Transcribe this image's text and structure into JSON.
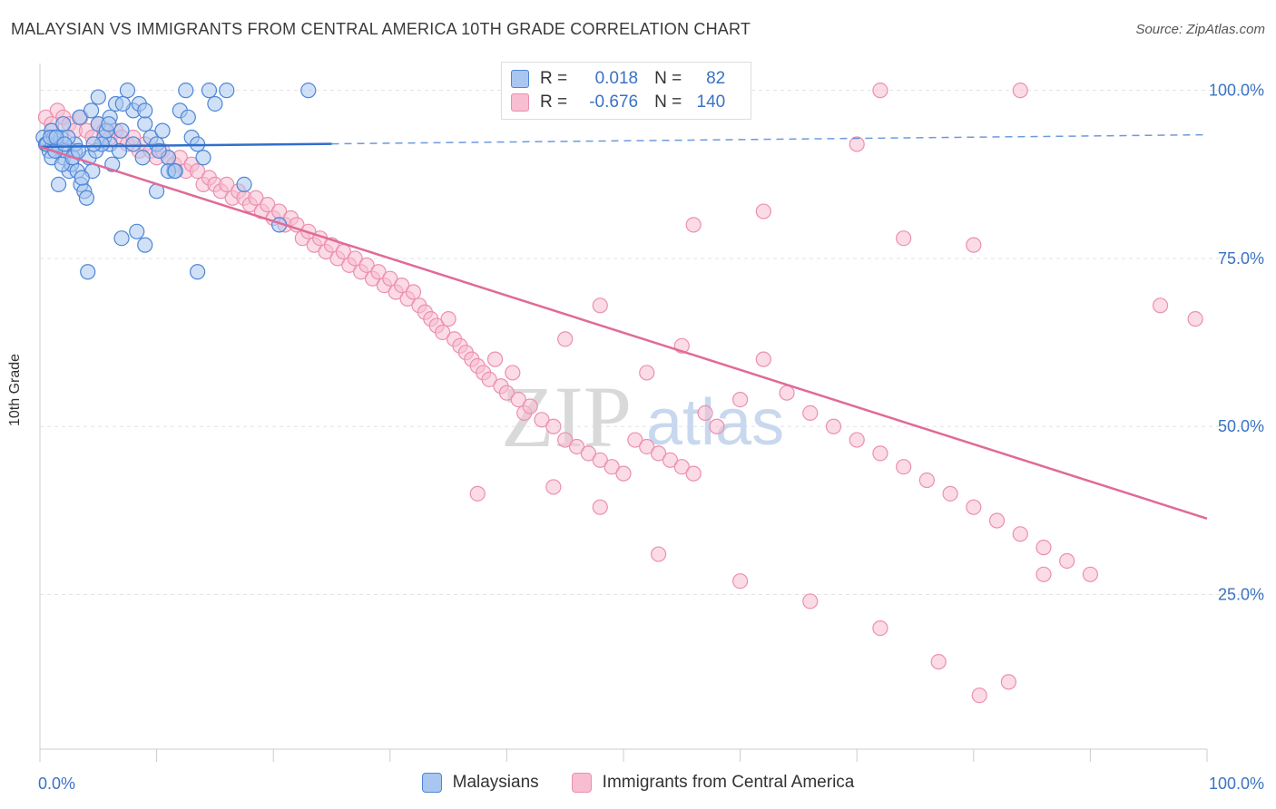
{
  "title": "MALAYSIAN VS IMMIGRANTS FROM CENTRAL AMERICA 10TH GRADE CORRELATION CHART",
  "source": "Source: ZipAtlas.com",
  "watermark": {
    "zip": "ZIP",
    "atlas": "atlas"
  },
  "colors": {
    "blue_fill": "#a9c6f0",
    "blue_stroke": "#4d86d6",
    "blue_line": "#2f6fce",
    "pink_fill": "#f7bdd0",
    "pink_stroke": "#ec8fb0",
    "pink_line": "#e06a98",
    "axis_label": "#3b72c4"
  },
  "legend": {
    "rows": [
      {
        "r_label": "R =",
        "r_value": "0.018",
        "n_label": "N =",
        "n_value": "82"
      },
      {
        "r_label": "R =",
        "r_value": "-0.676",
        "n_label": "N =",
        "n_value": "140"
      }
    ]
  },
  "chart_data": {
    "type": "scatter",
    "title": "MALAYSIAN VS IMMIGRANTS FROM CENTRAL AMERICA 10TH GRADE CORRELATION CHART",
    "ylabel": "10th Grade",
    "xlabel": "",
    "xlim": [
      0,
      100
    ],
    "ylim": [
      2,
      104
    ],
    "x_tick_labels": [
      "0.0%",
      "100.0%"
    ],
    "y_tick_labels": [
      "100.0%",
      "75.0%",
      "50.0%",
      "25.0%"
    ],
    "y_ticks": [
      100,
      75,
      50,
      25
    ],
    "series": [
      {
        "name": "Malaysians",
        "color": "blue",
        "R": 0.018,
        "N": 82,
        "trend": {
          "x0": 0,
          "y0": 91.6,
          "x1": 100,
          "y1": 93.4,
          "solid_until": 25
        },
        "points": [
          [
            0.3,
            93
          ],
          [
            0.5,
            92
          ],
          [
            0.8,
            91
          ],
          [
            1.0,
            94
          ],
          [
            1.2,
            93
          ],
          [
            1.5,
            92
          ],
          [
            1.8,
            93
          ],
          [
            2.0,
            90
          ],
          [
            2.2,
            91
          ],
          [
            2.5,
            88
          ],
          [
            2.7,
            89
          ],
          [
            3.0,
            91
          ],
          [
            3.2,
            88
          ],
          [
            3.5,
            86
          ],
          [
            3.8,
            85
          ],
          [
            4.0,
            84
          ],
          [
            4.2,
            90
          ],
          [
            4.5,
            88
          ],
          [
            1.0,
            90
          ],
          [
            1.6,
            86
          ],
          [
            2.0,
            95
          ],
          [
            3.4,
            96
          ],
          [
            4.4,
            97
          ],
          [
            5.0,
            95
          ],
          [
            5.5,
            93
          ],
          [
            6.0,
            92
          ],
          [
            6.5,
            98
          ],
          [
            7.0,
            94
          ],
          [
            7.5,
            100
          ],
          [
            8.0,
            97
          ],
          [
            8.5,
            98
          ],
          [
            9.0,
            95
          ],
          [
            9.5,
            93
          ],
          [
            10.0,
            92
          ],
          [
            10.5,
            94
          ],
          [
            11.0,
            90
          ],
          [
            11.5,
            88
          ],
          [
            12.0,
            97
          ],
          [
            12.5,
            100
          ],
          [
            13.0,
            93
          ],
          [
            13.5,
            92
          ],
          [
            14.0,
            90
          ],
          [
            14.5,
            100
          ],
          [
            15.0,
            98
          ],
          [
            16.0,
            100
          ],
          [
            17.5,
            86
          ],
          [
            20.5,
            80
          ],
          [
            23.0,
            100
          ],
          [
            4.1,
            73
          ],
          [
            5.0,
            99
          ],
          [
            6.2,
            89
          ],
          [
            7.0,
            78
          ],
          [
            8.3,
            79
          ],
          [
            9.0,
            77
          ],
          [
            10.0,
            85
          ],
          [
            11.0,
            88
          ],
          [
            13.5,
            73
          ],
          [
            3.0,
            92
          ],
          [
            2.4,
            93
          ],
          [
            1.9,
            89
          ],
          [
            4.8,
            91
          ],
          [
            5.3,
            92
          ],
          [
            6.0,
            96
          ],
          [
            7.1,
            98
          ],
          [
            8.0,
            92
          ],
          [
            9.0,
            97
          ],
          [
            0.6,
            92
          ],
          [
            1.3,
            91
          ],
          [
            2.8,
            90
          ],
          [
            3.6,
            87
          ],
          [
            5.7,
            94
          ],
          [
            6.8,
            91
          ],
          [
            8.8,
            90
          ],
          [
            10.2,
            91
          ],
          [
            11.6,
            88
          ],
          [
            12.7,
            96
          ],
          [
            0.9,
            93
          ],
          [
            1.4,
            93
          ],
          [
            2.1,
            92
          ],
          [
            3.3,
            91
          ],
          [
            4.6,
            92
          ],
          [
            5.9,
            95
          ]
        ]
      },
      {
        "name": "Immigrants from Central America",
        "color": "pink",
        "R": -0.676,
        "N": 140,
        "trend": {
          "x0": 0,
          "y0": 91.6,
          "x1": 100,
          "y1": 36.3
        },
        "points": [
          [
            0.5,
            96
          ],
          [
            1.0,
            95
          ],
          [
            1.5,
            97
          ],
          [
            2.0,
            96
          ],
          [
            2.5,
            95
          ],
          [
            3.0,
            94
          ],
          [
            3.5,
            96
          ],
          [
            4.0,
            94
          ],
          [
            4.5,
            93
          ],
          [
            5.0,
            95
          ],
          [
            5.5,
            94
          ],
          [
            6.0,
            93
          ],
          [
            6.5,
            94
          ],
          [
            7.0,
            93
          ],
          [
            7.5,
            92
          ],
          [
            8.0,
            93
          ],
          [
            8.5,
            91
          ],
          [
            9.0,
            92
          ],
          [
            9.5,
            91
          ],
          [
            10.0,
            90
          ],
          [
            10.5,
            91
          ],
          [
            11.0,
            90
          ],
          [
            11.5,
            89
          ],
          [
            12.0,
            90
          ],
          [
            12.5,
            88
          ],
          [
            13.0,
            89
          ],
          [
            13.5,
            88
          ],
          [
            14.0,
            86
          ],
          [
            14.5,
            87
          ],
          [
            15.0,
            86
          ],
          [
            15.5,
            85
          ],
          [
            16.0,
            86
          ],
          [
            16.5,
            84
          ],
          [
            17.0,
            85
          ],
          [
            17.5,
            84
          ],
          [
            18.0,
            83
          ],
          [
            18.5,
            84
          ],
          [
            19.0,
            82
          ],
          [
            19.5,
            83
          ],
          [
            20.0,
            81
          ],
          [
            20.5,
            82
          ],
          [
            21.0,
            80
          ],
          [
            21.5,
            81
          ],
          [
            22.0,
            80
          ],
          [
            22.5,
            78
          ],
          [
            23.0,
            79
          ],
          [
            23.5,
            77
          ],
          [
            24.0,
            78
          ],
          [
            24.5,
            76
          ],
          [
            25.0,
            77
          ],
          [
            25.5,
            75
          ],
          [
            26.0,
            76
          ],
          [
            26.5,
            74
          ],
          [
            27.0,
            75
          ],
          [
            27.5,
            73
          ],
          [
            28.0,
            74
          ],
          [
            28.5,
            72
          ],
          [
            29.0,
            73
          ],
          [
            29.5,
            71
          ],
          [
            30.0,
            72
          ],
          [
            30.5,
            70
          ],
          [
            31.0,
            71
          ],
          [
            31.5,
            69
          ],
          [
            32.0,
            70
          ],
          [
            32.5,
            68
          ],
          [
            33.0,
            67
          ],
          [
            33.5,
            66
          ],
          [
            34.0,
            65
          ],
          [
            34.5,
            64
          ],
          [
            35.0,
            66
          ],
          [
            35.5,
            63
          ],
          [
            36.0,
            62
          ],
          [
            36.5,
            61
          ],
          [
            37.0,
            60
          ],
          [
            37.5,
            59
          ],
          [
            38.0,
            58
          ],
          [
            38.5,
            57
          ],
          [
            39.0,
            60
          ],
          [
            39.5,
            56
          ],
          [
            40.0,
            55
          ],
          [
            40.5,
            58
          ],
          [
            41.0,
            54
          ],
          [
            41.5,
            52
          ],
          [
            42.0,
            53
          ],
          [
            43.0,
            51
          ],
          [
            44.0,
            50
          ],
          [
            45.0,
            48
          ],
          [
            46.0,
            47
          ],
          [
            47.0,
            46
          ],
          [
            48.0,
            45
          ],
          [
            49.0,
            44
          ],
          [
            50.0,
            43
          ],
          [
            51.0,
            48
          ],
          [
            52.0,
            47
          ],
          [
            53.0,
            46
          ],
          [
            54.0,
            45
          ],
          [
            55.0,
            44
          ],
          [
            56.0,
            43
          ],
          [
            57.0,
            52
          ],
          [
            58.0,
            50
          ],
          [
            45.0,
            63
          ],
          [
            48.0,
            68
          ],
          [
            52.0,
            58
          ],
          [
            55.0,
            62
          ],
          [
            60.0,
            54
          ],
          [
            62.0,
            60
          ],
          [
            64.0,
            55
          ],
          [
            66.0,
            52
          ],
          [
            68.0,
            50
          ],
          [
            70.0,
            48
          ],
          [
            72.0,
            46
          ],
          [
            74.0,
            44
          ],
          [
            76.0,
            42
          ],
          [
            78.0,
            40
          ],
          [
            80.0,
            38
          ],
          [
            82.0,
            36
          ],
          [
            84.0,
            34
          ],
          [
            86.0,
            32
          ],
          [
            88.0,
            30
          ],
          [
            90.0,
            28
          ],
          [
            37.5,
            40
          ],
          [
            44.0,
            41
          ],
          [
            48.0,
            38
          ],
          [
            53.0,
            31
          ],
          [
            60.0,
            27
          ],
          [
            66.0,
            24
          ],
          [
            72.0,
            20
          ],
          [
            77.0,
            15
          ],
          [
            80.5,
            10
          ],
          [
            83.0,
            12
          ],
          [
            72.0,
            100
          ],
          [
            84.0,
            100
          ],
          [
            56.0,
            80
          ],
          [
            62.0,
            82
          ],
          [
            70.0,
            92
          ],
          [
            74.0,
            78
          ],
          [
            80.0,
            77
          ],
          [
            96.0,
            68
          ],
          [
            99.0,
            66
          ],
          [
            86.0,
            28
          ]
        ]
      }
    ]
  },
  "bottom_legend": [
    {
      "label": "Malaysians",
      "color": "blue"
    },
    {
      "label": "Immigrants from Central America",
      "color": "pink"
    }
  ]
}
